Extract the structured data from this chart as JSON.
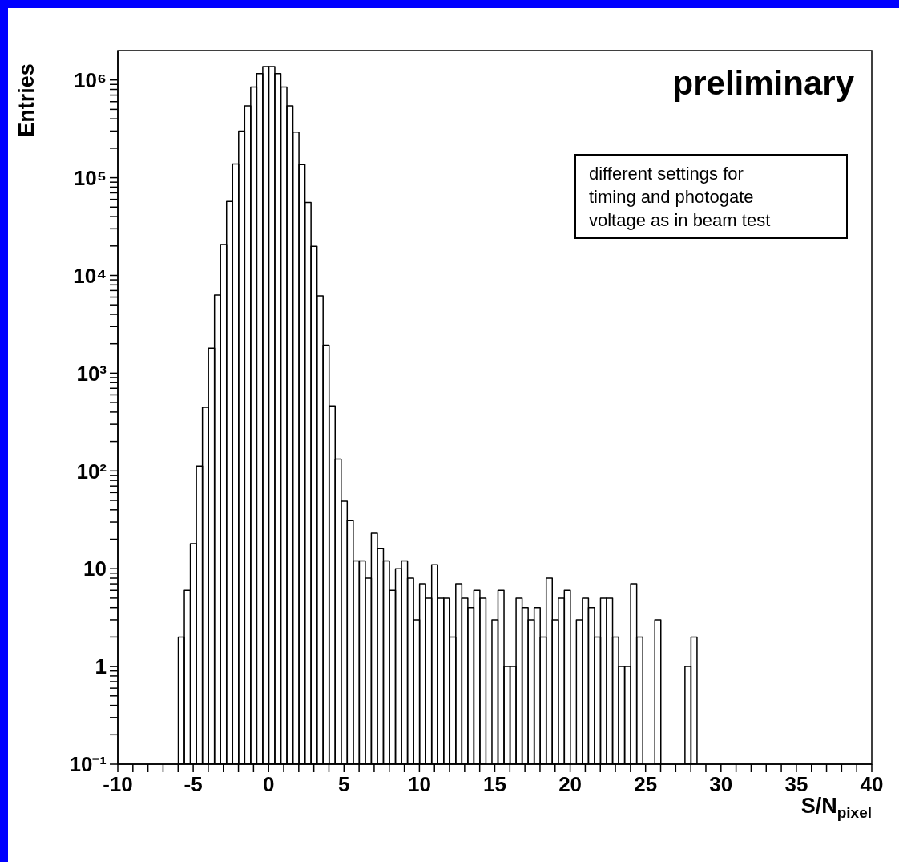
{
  "chart_data": {
    "type": "histogram",
    "xlabel": "S/N$_{pixel}$",
    "ylabel": "Entries",
    "color": "#000000",
    "log": true,
    "bins": [
      -6,
      -5.6,
      -5.2,
      -4.8,
      -4.4,
      -4,
      -3.6,
      -3.2,
      -2.8,
      -2.4,
      -2,
      -1.6,
      -1.2,
      -0.8,
      -0.4,
      0,
      0.4,
      0.8,
      1.2,
      1.6,
      2,
      2.4,
      2.8,
      3.2,
      3.6,
      4,
      4.4,
      4.8,
      5.2,
      5.6,
      6,
      6.4,
      6.8,
      7.2,
      7.6,
      8,
      8.4,
      8.8,
      9.2,
      9.6,
      10,
      10.4,
      10.8,
      11.2,
      11.6,
      12,
      12.4,
      12.8,
      13.2,
      13.6,
      14,
      14.4,
      14.8,
      15.2,
      15.6,
      16,
      16.4,
      16.8,
      17.2,
      17.6,
      18,
      18.4,
      18.8,
      19.2,
      19.6,
      20,
      20.4,
      20.8,
      21.2,
      21.6,
      22,
      22.4,
      22.8,
      23.2,
      23.6,
      24,
      24.4,
      24.8,
      25.2,
      25.6,
      26,
      26.4,
      26.8,
      27.2,
      27.6,
      28,
      28.4
    ],
    "values": [
      2,
      6,
      18,
      112,
      448,
      1800,
      6300,
      20700,
      57000,
      138000,
      299000,
      543000,
      848000,
      1160000,
      1370000,
      1370000,
      1160000,
      848000,
      543000,
      292000,
      136000,
      55800,
      19800,
      6180,
      1930,
      463,
      132,
      49,
      31,
      12,
      12,
      8,
      23,
      16,
      12,
      6,
      10,
      12,
      8,
      3,
      7,
      5,
      11,
      5,
      5,
      2,
      7,
      5,
      4,
      6,
      5,
      null,
      3,
      6,
      1,
      1,
      5,
      4,
      3,
      4,
      2,
      8,
      3,
      5,
      6,
      null,
      3,
      5,
      4,
      2,
      5,
      5,
      2,
      1,
      1,
      7,
      2,
      null,
      null,
      3,
      null,
      null,
      null,
      null,
      1,
      2
    ],
    "xlim": [
      -10,
      40
    ],
    "ylim": [
      0.1,
      2000000
    ],
    "xticks": [
      -10,
      {
        "value": -9,
        "label": null
      },
      {
        "value": -8,
        "label": null
      },
      {
        "value": -7,
        "label": null
      },
      {
        "value": -6,
        "label": null
      },
      -5,
      {
        "value": -4,
        "label": null
      },
      {
        "value": -3,
        "label": null
      },
      {
        "value": -2,
        "label": null
      },
      {
        "value": -1,
        "label": null
      },
      0,
      {
        "value": 1,
        "label": null
      },
      {
        "value": 2,
        "label": null
      },
      {
        "value": 3,
        "label": null
      },
      {
        "value": 4,
        "label": null
      },
      5,
      {
        "value": 6,
        "label": null
      },
      {
        "value": 7,
        "label": null
      },
      {
        "value": 8,
        "label": null
      },
      {
        "value": 9,
        "label": null
      },
      10,
      {
        "value": 11,
        "label": null
      },
      {
        "value": 12,
        "label": null
      },
      {
        "value": 13,
        "label": null
      },
      {
        "value": 14,
        "label": null
      },
      15,
      {
        "value": 16,
        "label": null
      },
      {
        "value": 17,
        "label": null
      },
      {
        "value": 18,
        "label": null
      },
      {
        "value": 19,
        "label": null
      },
      20,
      {
        "value": 21,
        "label": null
      },
      {
        "value": 22,
        "label": null
      },
      {
        "value": 23,
        "label": null
      },
      {
        "value": 24,
        "label": null
      },
      25,
      {
        "value": 26,
        "label": null
      },
      {
        "value": 27,
        "label": null
      },
      {
        "value": 28,
        "label": null
      },
      {
        "value": 29,
        "label": null
      },
      30,
      {
        "value": 31,
        "label": null
      },
      {
        "value": 32,
        "label": null
      },
      {
        "value": 33,
        "label": null
      },
      {
        "value": 34,
        "label": null
      },
      35,
      {
        "value": 36,
        "label": null
      },
      {
        "value": 37,
        "label": null
      },
      {
        "value": 38,
        "label": null
      },
      {
        "value": 39,
        "label": null
      },
      40
    ],
    "yticks": [
      {
        "value": 0.1,
        "label": "10⁻¹"
      },
      {
        "value": 0.2,
        "label": null
      },
      {
        "value": 0.3,
        "label": null
      },
      {
        "value": 0.4,
        "label": null
      },
      {
        "value": 0.5,
        "label": null
      },
      {
        "value": 0.6,
        "label": null
      },
      {
        "value": 0.7,
        "label": null
      },
      {
        "value": 0.8,
        "label": null
      },
      {
        "value": 0.9,
        "label": null
      },
      1,
      {
        "value": 2,
        "label": null
      },
      {
        "value": 3,
        "label": null
      },
      {
        "value": 4,
        "label": null
      },
      {
        "value": 5,
        "label": null
      },
      {
        "value": 6,
        "label": null
      },
      {
        "value": 7,
        "label": null
      },
      {
        "value": 8,
        "label": null
      },
      {
        "value": 9,
        "label": null
      },
      10,
      {
        "value": 20,
        "label": null
      },
      {
        "value": 30,
        "label": null
      },
      {
        "value": 40,
        "label": null
      },
      {
        "value": 50,
        "label": null
      },
      {
        "value": 60,
        "label": null
      },
      {
        "value": 70,
        "label": null
      },
      {
        "value": 80,
        "label": null
      },
      {
        "value": 90,
        "label": null
      },
      {
        "value": 100,
        "label": "10²"
      },
      {
        "value": 200,
        "label": null
      },
      {
        "value": 300,
        "label": null
      },
      {
        "value": 400,
        "label": null
      },
      {
        "value": 500,
        "label": null
      },
      {
        "value": 600,
        "label": null
      },
      {
        "value": 700,
        "label": null
      },
      {
        "value": 800,
        "label": null
      },
      {
        "value": 900,
        "label": null
      },
      {
        "value": 1000,
        "label": "10³"
      },
      {
        "value": 2000,
        "label": null
      },
      {
        "value": 3000,
        "label": null
      },
      {
        "value": 4000,
        "label": null
      },
      {
        "value": 5000,
        "label": null
      },
      {
        "value": 6000,
        "label": null
      },
      {
        "value": 7000,
        "label": null
      },
      {
        "value": 8000,
        "label": null
      },
      {
        "value": 9000,
        "label": null
      },
      {
        "value": 10000,
        "label": "10⁴"
      },
      {
        "value": 20000,
        "label": null
      },
      {
        "value": 30000,
        "label": null
      },
      {
        "value": 40000,
        "label": null
      },
      {
        "value": 50000,
        "label": null
      },
      {
        "value": 60000,
        "label": null
      },
      {
        "value": 70000,
        "label": null
      },
      {
        "value": 80000,
        "label": null
      },
      {
        "value": 90000,
        "label": null
      },
      {
        "value": 100000,
        "label": "10⁵"
      },
      {
        "value": 200000,
        "label": null
      },
      {
        "value": 300000,
        "label": null
      },
      {
        "value": 400000,
        "label": null
      },
      {
        "value": 500000,
        "label": null
      },
      {
        "value": 600000,
        "label": null
      },
      {
        "value": 700000,
        "label": null
      },
      {
        "value": 800000,
        "label": null
      },
      {
        "value": 900000,
        "label": null
      },
      {
        "value": 1000000,
        "label": "10⁶"
      }
    ],
    "annotations": [
      "preliminary",
      "different settings for\ntiming and photogate\nvoltage as in beam test"
    ]
  }
}
